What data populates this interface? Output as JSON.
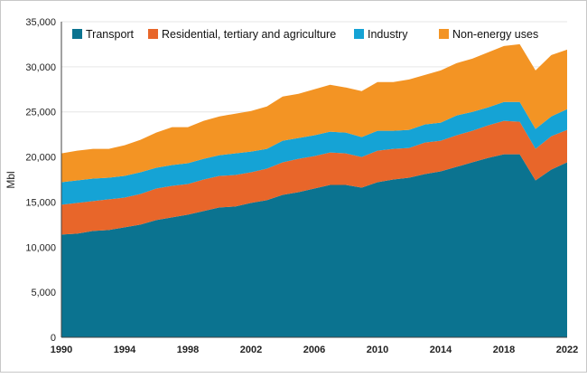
{
  "chart_data": {
    "type": "area",
    "stacked": true,
    "title": "",
    "xlabel": "",
    "ylabel": "Mbl",
    "ylim": [
      0,
      35000
    ],
    "xlim": [
      1990,
      2022
    ],
    "yticks": [
      "0",
      "5,000",
      "10,000",
      "15,000",
      "20,000",
      "25,000",
      "30,000",
      "35,000"
    ],
    "ytick_values": [
      0,
      5000,
      10000,
      15000,
      20000,
      25000,
      30000,
      35000
    ],
    "xticks": [
      "1990",
      "1994",
      "1998",
      "2002",
      "2006",
      "2010",
      "2014",
      "2018",
      "2022"
    ],
    "xtick_values": [
      1990,
      1994,
      1998,
      2002,
      2006,
      2010,
      2014,
      2018,
      2022
    ],
    "grid": "horizontal",
    "legend_position": "top",
    "x": [
      1990,
      1991,
      1992,
      1993,
      1994,
      1995,
      1996,
      1997,
      1998,
      1999,
      2000,
      2001,
      2002,
      2003,
      2004,
      2005,
      2006,
      2007,
      2008,
      2009,
      2010,
      2011,
      2012,
      2013,
      2014,
      2015,
      2016,
      2017,
      2018,
      2019,
      2020,
      2021,
      2022
    ],
    "series": [
      {
        "name": "Transport",
        "color": "#0b7390",
        "values": [
          11400,
          11500,
          11800,
          11900,
          12200,
          12500,
          13000,
          13300,
          13600,
          14000,
          14400,
          14500,
          14900,
          15200,
          15800,
          16100,
          16500,
          16900,
          16900,
          16600,
          17200,
          17500,
          17700,
          18100,
          18400,
          18900,
          19400,
          19900,
          20300,
          20300,
          17400,
          18600,
          19400
        ]
      },
      {
        "name": "Residential, tertiary and agriculture",
        "color": "#e8662a",
        "values": [
          3300,
          3400,
          3300,
          3400,
          3300,
          3400,
          3500,
          3500,
          3400,
          3500,
          3500,
          3500,
          3400,
          3500,
          3600,
          3700,
          3600,
          3600,
          3500,
          3400,
          3500,
          3400,
          3300,
          3500,
          3400,
          3500,
          3500,
          3600,
          3700,
          3600,
          3500,
          3700,
          3600
        ]
      },
      {
        "name": "Industry",
        "color": "#15a3d5",
        "values": [
          2500,
          2500,
          2500,
          2400,
          2400,
          2400,
          2300,
          2300,
          2300,
          2300,
          2300,
          2400,
          2300,
          2200,
          2400,
          2300,
          2300,
          2300,
          2300,
          2200,
          2200,
          2000,
          2000,
          2000,
          2000,
          2200,
          2100,
          2000,
          2100,
          2200,
          2200,
          2200,
          2300
        ]
      },
      {
        "name": "Non-energy uses",
        "color": "#f39424",
        "values": [
          3200,
          3300,
          3300,
          3200,
          3400,
          3600,
          3900,
          4200,
          4000,
          4200,
          4300,
          4400,
          4500,
          4700,
          4900,
          4900,
          5100,
          5200,
          5000,
          5100,
          5400,
          5400,
          5600,
          5500,
          5800,
          5800,
          5900,
          6100,
          6200,
          6400,
          6500,
          6800,
          6600
        ]
      }
    ]
  }
}
